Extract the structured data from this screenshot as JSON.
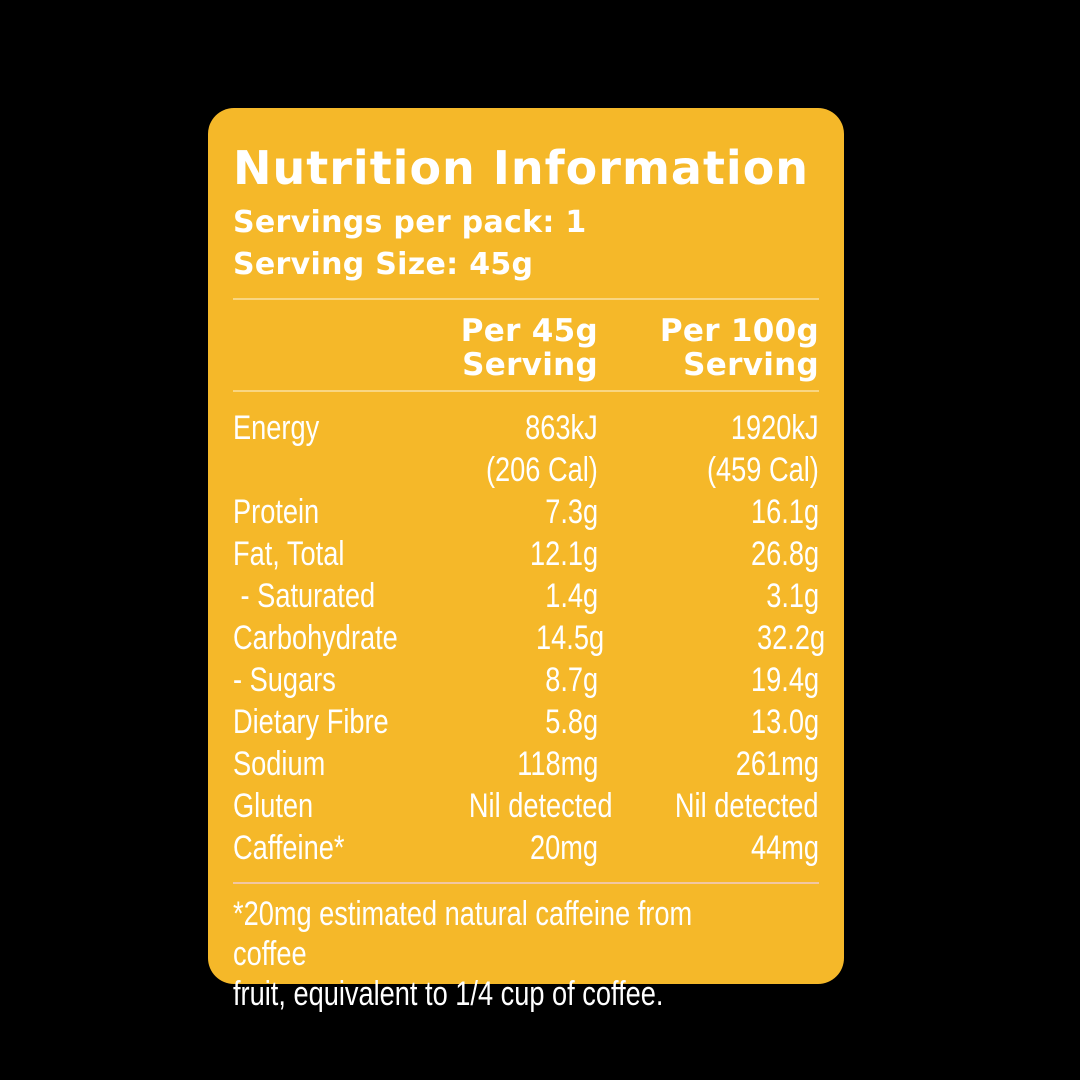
{
  "colors": {
    "background": "#000000",
    "card": "#F5B829",
    "text": "#FFFFFF",
    "divider": "#FBDA94",
    "footnote_divider": "#F2C7A3"
  },
  "panel": {
    "title": "Nutrition Information",
    "servings_per_pack": "Servings per pack: 1",
    "serving_size": "Serving Size: 45g",
    "footnote": "*20mg estimated natural caffeine from coffee\nfruit, equivalent to 1/4 cup of coffee."
  },
  "table": {
    "col1_header": "Per 45g\nServing",
    "col2_header": "Per 100g\nServing",
    "rows": [
      {
        "label": "Energy",
        "per_45g": "863kJ",
        "per_100g": "1920kJ"
      },
      {
        "label": "",
        "per_45g": "(206 Cal)",
        "per_100g": "(459 Cal)"
      },
      {
        "label": "Protein",
        "per_45g": "7.3g",
        "per_100g": "16.1g"
      },
      {
        "label": "Fat, Total",
        "per_45g": "12.1g",
        "per_100g": "26.8g"
      },
      {
        "label": " - Saturated",
        "per_45g": "1.4g",
        "per_100g": "3.1g"
      },
      {
        "label": "Carbohydrate",
        "per_45g": "14.5g",
        "per_100g": "32.2g"
      },
      {
        "label": "- Sugars",
        "per_45g": "8.7g",
        "per_100g": "19.4g"
      },
      {
        "label": "Dietary Fibre",
        "per_45g": "5.8g",
        "per_100g": "13.0g"
      },
      {
        "label": "Sodium",
        "per_45g": "118mg",
        "per_100g": "261mg"
      },
      {
        "label": "Gluten",
        "per_45g": "Nil detected",
        "per_100g": "Nil detected"
      },
      {
        "label": "Caffeine*",
        "per_45g": "20mg",
        "per_100g": "44mg"
      }
    ]
  }
}
